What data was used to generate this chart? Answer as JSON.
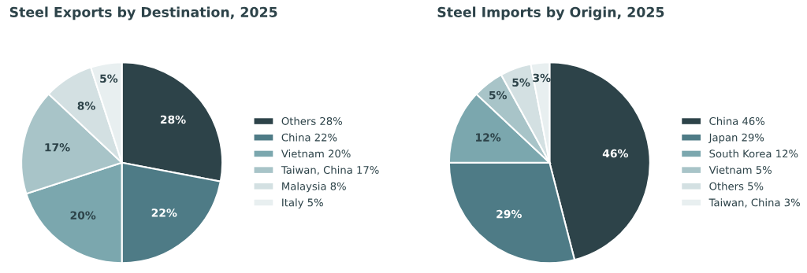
{
  "chart_data": [
    {
      "type": "pie",
      "title": "Steel Exports by Destination, 2025",
      "categories": [
        "Others 28%",
        "China 22%",
        "Vietnam 20%",
        "Taiwan, China 17%",
        "Malaysia 8%",
        "Italy 5%"
      ],
      "values": [
        28,
        22,
        20,
        17,
        8,
        5
      ],
      "colors": [
        "#2d4349",
        "#4e7b86",
        "#7ba7ae",
        "#a8c4c8",
        "#d3e0e2",
        "#e8eff0"
      ],
      "value_labels": [
        "28%",
        "22%",
        "20%",
        "17%",
        "8%",
        "5%"
      ],
      "legend": "right"
    },
    {
      "type": "pie",
      "title": "Steel Imports by Origin, 2025",
      "categories": [
        "China 46%",
        "Japan 29%",
        "South Korea 12%",
        "Vietnam 5%",
        "Others 5%",
        "Taiwan, China 3%"
      ],
      "values": [
        46,
        29,
        12,
        5,
        5,
        3
      ],
      "colors": [
        "#2d4349",
        "#4e7b86",
        "#7ba7ae",
        "#a8c4c8",
        "#d3e0e2",
        "#e8eff0"
      ],
      "value_labels": [
        "46%",
        "29%",
        "12%",
        "5%",
        "5%",
        "3%"
      ],
      "legend": "right"
    }
  ]
}
